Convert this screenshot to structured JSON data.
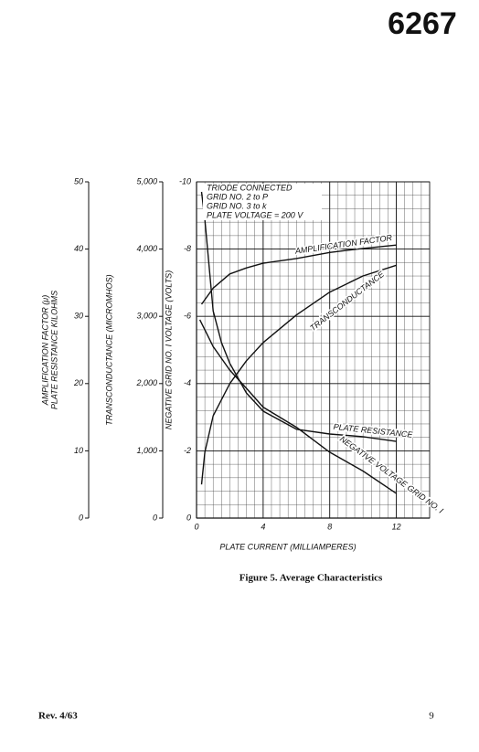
{
  "page_number_header": "6267",
  "caption": "Figure 5.  Average Characteristics",
  "footer": {
    "revision": "Rev. 4/63",
    "page": "9"
  },
  "chart_data": {
    "type": "line",
    "x_label": "PLATE CURRENT (MILLIAMPERES)",
    "y_label": "NEGATIVE GRID NO. I  VOLTAGE  (VOLTS)",
    "y2_label": "TRANSCONDUCTANCE (MICROMHOS)",
    "y3_label": [
      "AMPLIFICATION FACTOR (μ)",
      "PLATE  RESISTANCE KILOHMS"
    ],
    "annotation": [
      "TRIODE CONNECTED",
      "GRID NO. 2 to P",
      "GRID NO. 3 to k",
      "PLATE VOLTAGE = 200 V"
    ],
    "xlim": [
      0,
      14
    ],
    "xticks": [
      0,
      4,
      8,
      12
    ],
    "ylim": [
      0,
      -10
    ],
    "yticks": [
      0,
      -2,
      -4,
      -6,
      -8,
      -10
    ],
    "y2lim": [
      0,
      5000
    ],
    "y2ticks": [
      0,
      {
        "value": 1000,
        "label": "1,000"
      },
      {
        "value": 2000,
        "label": "2,000"
      },
      {
        "value": 3000,
        "label": "3,000"
      },
      {
        "value": 4000,
        "label": "4,000"
      },
      {
        "value": 5000,
        "label": "5,000"
      }
    ],
    "y3lim": [
      0,
      50
    ],
    "y3ticks": [
      0,
      10,
      20,
      30,
      40,
      50
    ],
    "grid": true,
    "series": [
      {
        "name": "AMPLIFICATION FACTOR",
        "axis": "y3",
        "color": "#111111",
        "x": [
          0.3,
          1,
          2,
          3,
          4,
          6,
          8,
          10,
          12
        ],
        "values": [
          31.8,
          34.2,
          36.3,
          37.2,
          37.9,
          38.6,
          39.5,
          40.1,
          40.6
        ]
      },
      {
        "name": "TRANSCONDUCTANCE",
        "axis": "y2",
        "color": "#111111",
        "x": [
          0.3,
          0.5,
          1,
          2,
          3,
          4,
          6,
          8,
          10,
          12
        ],
        "values": [
          500,
          980,
          1520,
          2000,
          2340,
          2610,
          3020,
          3360,
          3600,
          3760
        ]
      },
      {
        "name": "PLATE RESISTANCE",
        "axis": "y3",
        "color": "#111111",
        "x": [
          0.3,
          0.5,
          1,
          1.5,
          2,
          3,
          4,
          6,
          8,
          10,
          12
        ],
        "values": [
          48.5,
          44.4,
          30.8,
          26.1,
          23.0,
          18.6,
          15.9,
          13.2,
          12.5,
          12.1,
          11.4
        ]
      },
      {
        "name": "NEGATIVE VOLTAGE GRID NO. I",
        "axis": "y",
        "color": "#111111",
        "x": [
          0.2,
          0.5,
          1,
          2,
          3,
          4,
          6,
          8,
          10,
          12
        ],
        "values": [
          -5.9,
          -5.6,
          -5.1,
          -4.4,
          -3.86,
          -3.3,
          -2.7,
          -1.96,
          -1.4,
          -0.73
        ]
      }
    ]
  }
}
